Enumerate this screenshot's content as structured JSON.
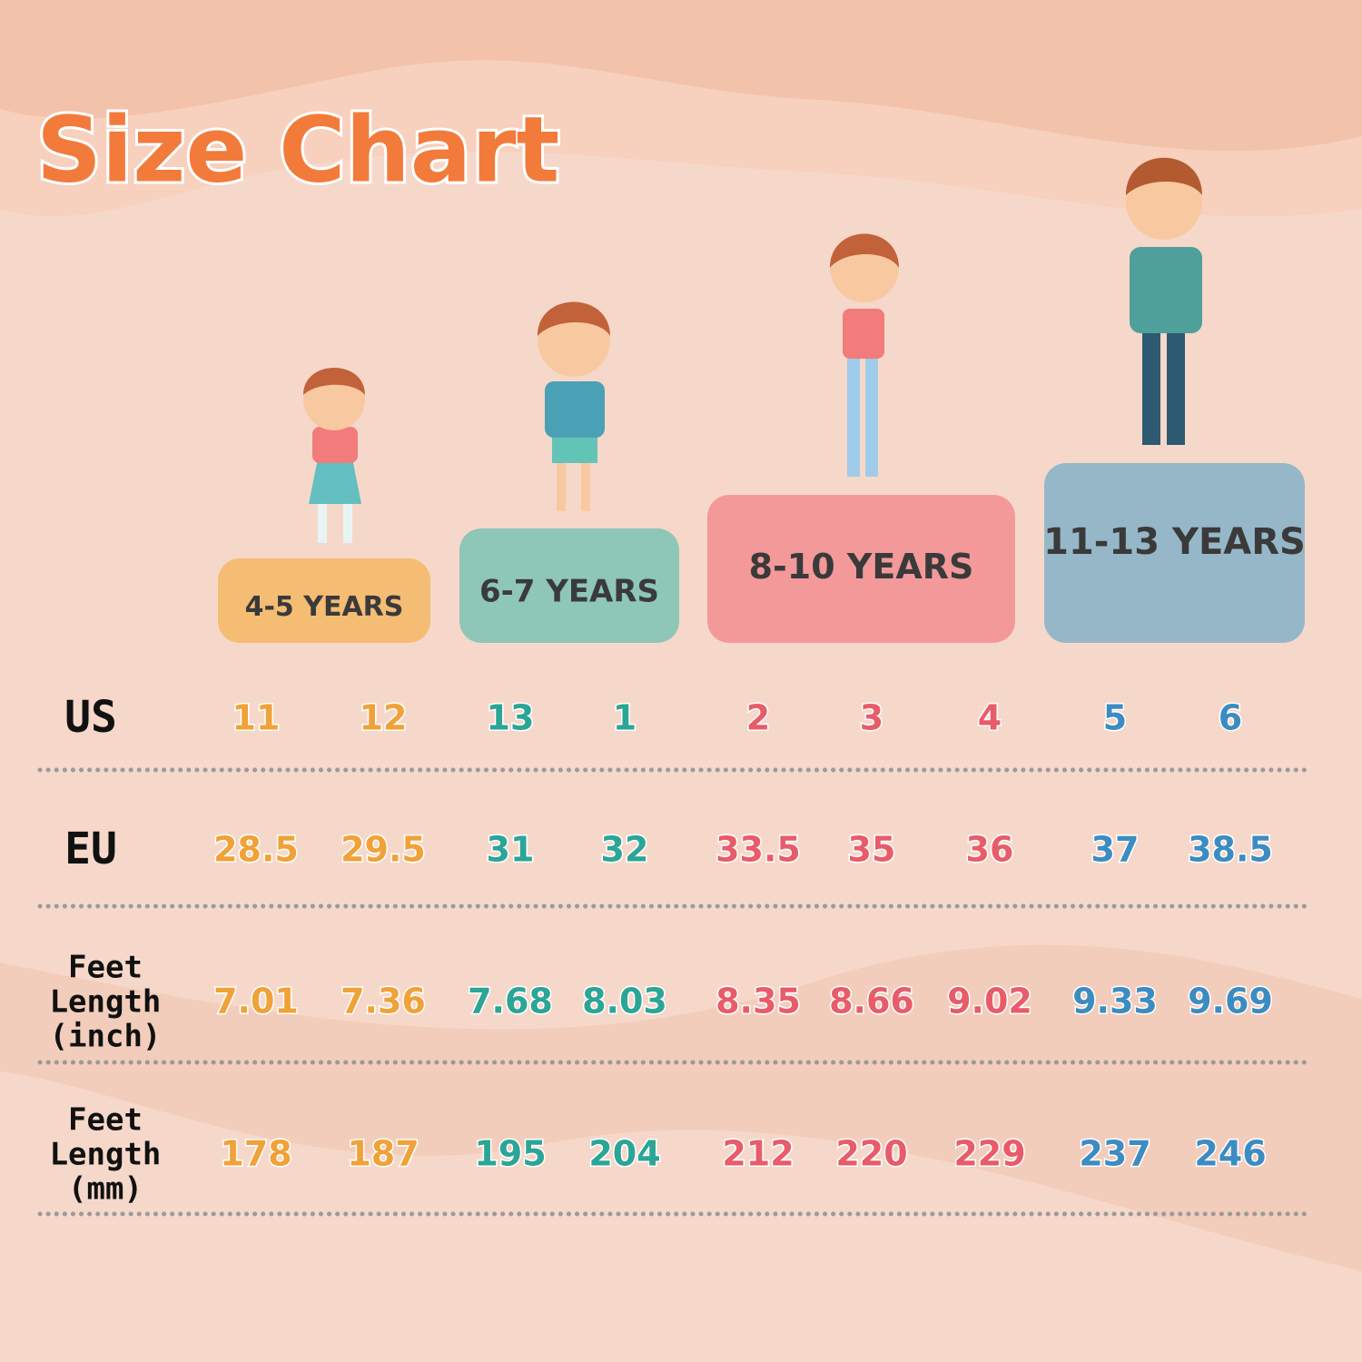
{
  "title": "Size Chart",
  "groups": [
    {
      "label": "4-5 YEARS"
    },
    {
      "label": "6-7 YEARS"
    },
    {
      "label": "8-10 YEARS"
    },
    {
      "label": "11-13 YEARS"
    }
  ],
  "rows": [
    {
      "label": [
        "US"
      ],
      "values": [
        "11",
        "12",
        "13",
        "1",
        "2",
        "3",
        "4",
        "5",
        "6"
      ]
    },
    {
      "label": [
        "EU"
      ],
      "values": [
        "28.5",
        "29.5",
        "31",
        "32",
        "33.5",
        "35",
        "36",
        "37",
        "38.5"
      ]
    },
    {
      "label": [
        "Feet",
        "Length",
        "(inch)"
      ],
      "values": [
        "7.01",
        "7.36",
        "7.68",
        "8.03",
        "8.35",
        "8.66",
        "9.02",
        "9.33",
        "9.69"
      ]
    },
    {
      "label": [
        "Feet",
        "Length",
        "(mm)"
      ],
      "values": [
        "178",
        "187",
        "195",
        "204",
        "212",
        "220",
        "229",
        "237",
        "246"
      ]
    }
  ]
}
